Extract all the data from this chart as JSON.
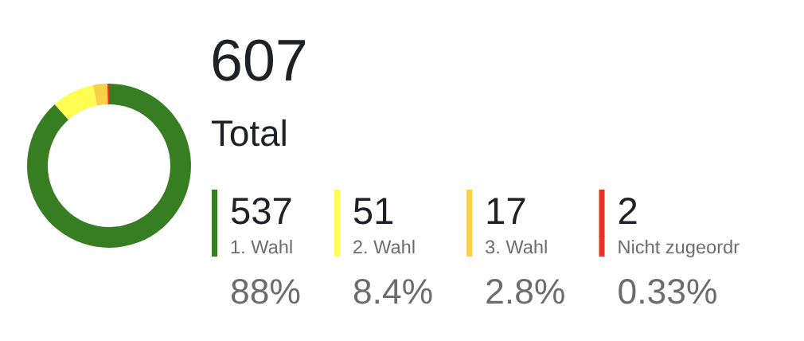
{
  "chart_data": {
    "type": "donut",
    "title": "607",
    "subtitle": "Total",
    "categories": [
      "1. Wahl",
      "2. Wahl",
      "3. Wahl",
      "Nicht zugeordr"
    ],
    "values": [
      537,
      51,
      17,
      2
    ],
    "colors": [
      "#377e22",
      "#fffc52",
      "#f8d148",
      "#ea3323"
    ],
    "data_labels": true,
    "annotations": [
      "88%",
      "8.4%",
      "2.8%",
      "0.33%"
    ],
    "legend": "right"
  }
}
